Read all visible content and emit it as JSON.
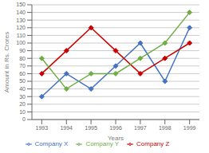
{
  "chart_data": {
    "type": "line",
    "x": [
      1993,
      1994,
      1995,
      1996,
      1997,
      1998,
      1999
    ],
    "series": [
      {
        "name": "Company X",
        "color": "#4472c4",
        "values": [
          30,
          60,
          40,
          70,
          100,
          50,
          120
        ],
        "marker": "diamond"
      },
      {
        "name": "Company Z",
        "color": "#cc0000",
        "values": [
          60,
          90,
          120,
          90,
          60,
          80,
          100
        ],
        "marker": "diamond"
      },
      {
        "name": "Company Y",
        "color": "#70ad47",
        "values": [
          80,
          40,
          60,
          60,
          80,
          100,
          140
        ],
        "marker": "diamond"
      }
    ],
    "xlabel": "Years",
    "ylabel": "Amount in Rs. Crores",
    "xlim": [
      1992.6,
      1999.4
    ],
    "xticks": [
      1993,
      1994,
      1995,
      1996,
      1997,
      1998,
      1999
    ],
    "ylim": [
      0,
      150
    ],
    "yticks": [
      0,
      10,
      20,
      30,
      40,
      50,
      60,
      70,
      80,
      90,
      100,
      110,
      120,
      130,
      140,
      150
    ],
    "grid": "y",
    "legend": "bottom"
  }
}
